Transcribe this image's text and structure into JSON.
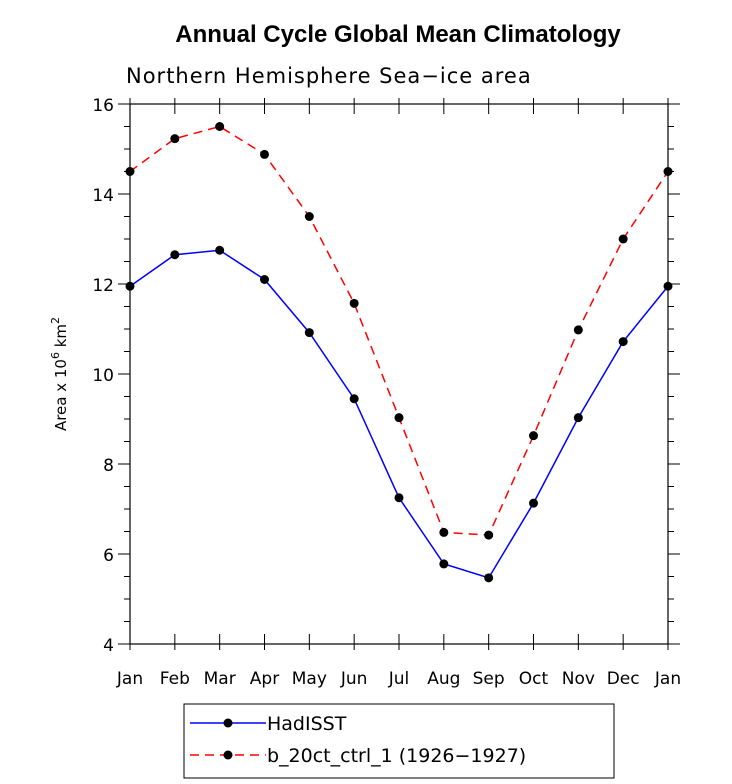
{
  "chart_data": {
    "type": "line",
    "title": "Annual Cycle Global Mean Climatology",
    "subtitle": "Northern Hemisphere Sea−ice area",
    "ylabel_prefix": "Area x 10",
    "ylabel_exp1": "6",
    "ylabel_mid": " km",
    "ylabel_exp2": "2",
    "xlabel": "",
    "categories": [
      "Jan",
      "Feb",
      "Mar",
      "Apr",
      "May",
      "Jun",
      "Jul",
      "Aug",
      "Sep",
      "Oct",
      "Nov",
      "Dec",
      "Jan"
    ],
    "ylim": [
      4,
      16
    ],
    "yticks": [
      4,
      6,
      8,
      10,
      12,
      14,
      16
    ],
    "series": [
      {
        "name": "HadISST",
        "color": "#0000ff",
        "dash": "solid",
        "values": [
          11.95,
          12.65,
          12.75,
          12.1,
          10.92,
          9.45,
          7.25,
          5.78,
          5.47,
          7.13,
          9.03,
          10.72,
          11.95
        ]
      },
      {
        "name": "b_20ct_ctrl_1 (1926−1927)",
        "color": "#ff0000",
        "dash": "dashed",
        "values": [
          14.5,
          15.23,
          15.5,
          14.88,
          13.5,
          11.57,
          9.03,
          6.48,
          6.42,
          8.63,
          10.98,
          13.0,
          14.5
        ]
      }
    ],
    "grid": false,
    "legend_position": "bottom-center"
  }
}
